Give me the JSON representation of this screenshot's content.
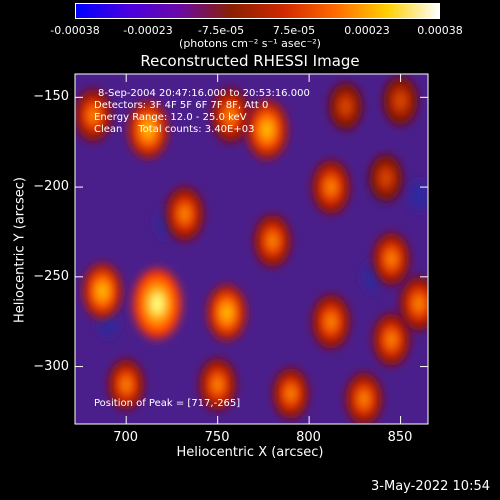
{
  "colorbar": {
    "tick_labels": [
      "-0.00038",
      "-0.00023",
      "-7.5e-05",
      "7.5e-05",
      "0.00023",
      "0.00038"
    ],
    "unit_label": "(photons cm⁻² s⁻¹ asec⁻²)",
    "gradient_colors": [
      "#0000ff",
      "#4a00e0",
      "#6a0aa6",
      "#8a1f00",
      "#d02800",
      "#ff6a00",
      "#ffd000",
      "#ffffff"
    ]
  },
  "chart_data": {
    "type": "heatmap",
    "title": "Reconstructed RHESSI Image",
    "xlabel": "Heliocentric X (arcsec)",
    "ylabel": "Heliocentric Y (arcsec)",
    "xlim": [
      672,
      865
    ],
    "ylim": [
      -332,
      -137
    ],
    "xticks": [
      700,
      750,
      800,
      850
    ],
    "yticks": [
      -150,
      -200,
      -250,
      -300
    ],
    "annotations": [
      "8-Sep-2004 20:47:16.000 to 20:53:16.000",
      "Detectors: 3F 4F 5F 6F 7F 8F, Att 0",
      "Energy Range: 12.0 - 25.0 keV",
      "Clean     Total counts: 3.40E+03"
    ],
    "peak_label": "Position of Peak = [717,-265]",
    "peak": [
      717,
      -265
    ],
    "sources": [
      {
        "x": 717,
        "y": -265,
        "intensity": 1.0
      },
      {
        "x": 687,
        "y": -258,
        "intensity": 0.6
      },
      {
        "x": 682,
        "y": -160,
        "intensity": 0.5
      },
      {
        "x": 712,
        "y": -168,
        "intensity": 0.65
      },
      {
        "x": 732,
        "y": -215,
        "intensity": 0.55
      },
      {
        "x": 757,
        "y": -160,
        "intensity": 0.55
      },
      {
        "x": 777,
        "y": -168,
        "intensity": 0.7
      },
      {
        "x": 755,
        "y": -270,
        "intensity": 0.6
      },
      {
        "x": 780,
        "y": -230,
        "intensity": 0.5
      },
      {
        "x": 812,
        "y": -200,
        "intensity": 0.55
      },
      {
        "x": 812,
        "y": -275,
        "intensity": 0.55
      },
      {
        "x": 842,
        "y": -195,
        "intensity": 0.35
      },
      {
        "x": 845,
        "y": -240,
        "intensity": 0.5
      },
      {
        "x": 845,
        "y": -285,
        "intensity": 0.5
      },
      {
        "x": 860,
        "y": -265,
        "intensity": 0.55
      },
      {
        "x": 700,
        "y": -310,
        "intensity": 0.45
      },
      {
        "x": 750,
        "y": -310,
        "intensity": 0.5
      },
      {
        "x": 790,
        "y": -315,
        "intensity": 0.45
      },
      {
        "x": 830,
        "y": -318,
        "intensity": 0.5
      },
      {
        "x": 850,
        "y": -152,
        "intensity": 0.4
      },
      {
        "x": 820,
        "y": -155,
        "intensity": 0.35
      }
    ],
    "negative_dips": [
      {
        "x": 722,
        "y": -220
      },
      {
        "x": 840,
        "y": -200
      },
      {
        "x": 835,
        "y": -250
      },
      {
        "x": 860,
        "y": -205
      },
      {
        "x": 690,
        "y": -275
      }
    ]
  },
  "footer": {
    "timestamp": "3-May-2022 10:54"
  }
}
